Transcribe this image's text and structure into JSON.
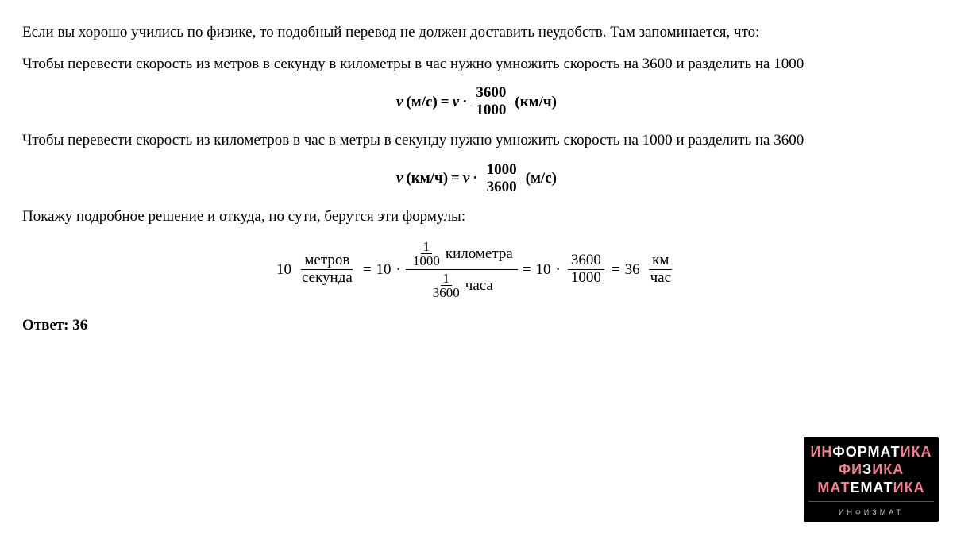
{
  "text": {
    "p1": "Если вы хорошо учились по физике, то подобный перевод не должен доставить неудобств. Там запоминается, что:",
    "p2": "Чтобы перевести скорость из метров в секунду в километры в час нужно умножить скорость на 3600 и разделить на 1000",
    "p3": "Чтобы перевести скорость из километров в час в метры в секунду нужно умножить скорость на 1000 и разделить на 3600",
    "p4": "Покажу подробное решение и откуда, по сути, берутся эти формулы:",
    "answer_label": "Ответ: ",
    "answer_value": "36"
  },
  "formula1": {
    "lhs_v": "v",
    "lhs_unit": "(м/с)",
    "eq": " = ",
    "rhs_v": "v",
    "dot": " · ",
    "num": "3600",
    "den": "1000",
    "rhs_unit": " (км/ч)"
  },
  "formula2": {
    "lhs_v": "v",
    "lhs_unit": "(км/ч)",
    "eq": " = ",
    "rhs_v": "v",
    "dot": " · ",
    "num": "1000",
    "den": "3600",
    "rhs_unit": " (м/с)"
  },
  "formula3": {
    "ten": "10",
    "meters": "метров",
    "second": "секунда",
    "eq": " = ",
    "dot": " · ",
    "one": "1",
    "thousand": "1000",
    "kilometer": "километра",
    "n3600": "3600",
    "hour": "часа",
    "f3600": "3600",
    "f1000": "1000",
    "result": "36",
    "km": "км",
    "chas": "час"
  },
  "logo": {
    "line1a": "ИН",
    "line1b": "ФОРМАТ",
    "line1c": "ИКА",
    "line2a": "ФИ",
    "line2b": "З",
    "line2c": "ИКА",
    "line3a": "МАТ",
    "line3b": "ЕМАТ",
    "line3c": "ИКА",
    "small": "ИНФИЗМАТ"
  },
  "style": {
    "bg": "#ffffff",
    "text_color": "#000000",
    "body_fontsize": 19,
    "logo_bg": "#000000",
    "logo_pink": "#f08090",
    "logo_white": "#ffffff",
    "logo_small_color": "#cccccc"
  }
}
